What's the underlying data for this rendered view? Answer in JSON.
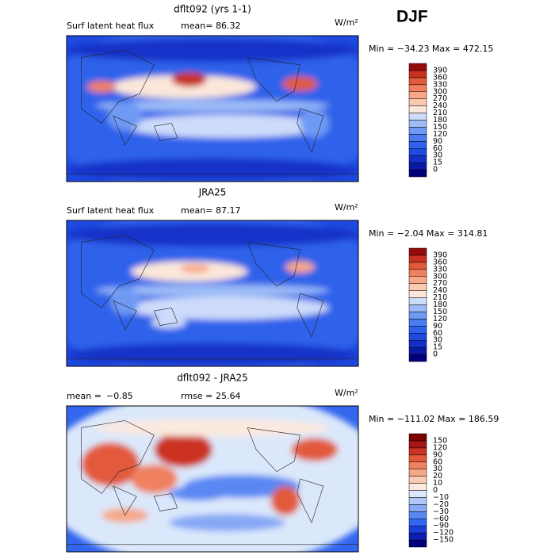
{
  "season": "DJF",
  "panels": [
    {
      "title": "dflt092 (yrs 1-1)",
      "left_label": "Surf latent heat flux",
      "stat1_label": "mean=",
      "stat1_value": "86.32",
      "units": "W/m²",
      "minmax": "Min = −34.23 Max = 472.15",
      "colorbar": {
        "labels": [
          "0",
          "15",
          "30",
          "60",
          "90",
          "120",
          "150",
          "180",
          "210",
          "240",
          "270",
          "300",
          "330",
          "360",
          "390"
        ],
        "colors": [
          "#00007a",
          "#0a1aa5",
          "#1230c8",
          "#1e4ae0",
          "#2f62ea",
          "#4a7cf0",
          "#6e9af4",
          "#9cbcf7",
          "#cddcfa",
          "#fbe7da",
          "#f9c9b0",
          "#f6a888",
          "#f08060",
          "#e25a3a",
          "#c83020",
          "#960c0c"
        ]
      }
    },
    {
      "title": "JRA25",
      "left_label": "Surf latent heat flux",
      "stat1_label": "mean=",
      "stat1_value": "87.17",
      "units": "W/m²",
      "minmax": "Min = −2.04 Max = 314.81",
      "colorbar": {
        "labels": [
          "0",
          "15",
          "30",
          "60",
          "90",
          "120",
          "150",
          "180",
          "210",
          "240",
          "270",
          "300",
          "330",
          "360",
          "390"
        ],
        "colors": [
          "#00007a",
          "#0a1aa5",
          "#1230c8",
          "#1e4ae0",
          "#2f62ea",
          "#4a7cf0",
          "#6e9af4",
          "#9cbcf7",
          "#cddcfa",
          "#fbe7da",
          "#f9c9b0",
          "#f6a888",
          "#f08060",
          "#e25a3a",
          "#c83020",
          "#960c0c"
        ]
      }
    },
    {
      "title": "dflt092 - JRA25",
      "left_label": "mean =",
      "left_value": "−0.85",
      "stat1_label": "rmse =",
      "stat1_value": "25.64",
      "units": "W/m²",
      "minmax": "Min = −111.02 Max = 186.59",
      "colorbar": {
        "labels": [
          "−150",
          "−120",
          "−90",
          "−60",
          "−30",
          "−20",
          "−10",
          "0",
          "10",
          "20",
          "30",
          "60",
          "90",
          "120",
          "150"
        ],
        "colors": [
          "#00007a",
          "#0e1eb0",
          "#1a40d8",
          "#3366ee",
          "#5a88f2",
          "#86a8f5",
          "#b0c8f8",
          "#dbe8fb",
          "#fbe9de",
          "#f9cbb5",
          "#f5a888",
          "#ef8060",
          "#e25a3a",
          "#cc3322",
          "#a81515",
          "#7a0000"
        ]
      }
    }
  ]
}
